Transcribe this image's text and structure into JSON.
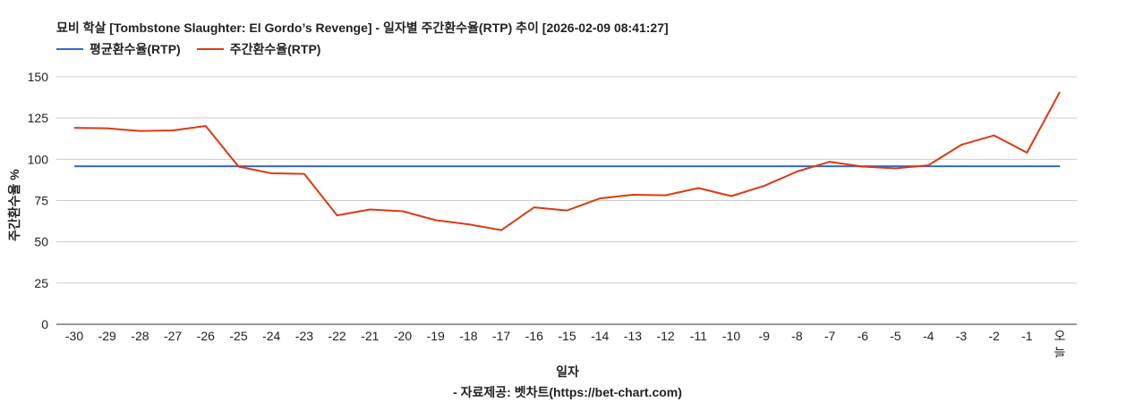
{
  "title": "묘비 학살 [Tombstone Slaughter: El Gordo’s Revenge] - 일자별 주간환수율(RTP) 추이 [2026-02-09 08:41:27]",
  "legend": [
    {
      "label": "평균환수율(RTP)",
      "color": "#3366cc"
    },
    {
      "label": "주간환수율(RTP)",
      "color": "#dc3912"
    }
  ],
  "axes": {
    "ylabel": "주간환수율 %",
    "xlabel": "일자"
  },
  "source": "- 자료제공: 벳차트(https://bet-chart.com)",
  "chart_data": {
    "type": "line",
    "title": "묘비 학살 [Tombstone Slaughter: El Gordo’s Revenge] - 일자별 주간환수율(RTP) 추이 [2026-02-09 08:41:27]",
    "xlabel": "일자",
    "ylabel": "주간환수율 %",
    "ylim": [
      0,
      150
    ],
    "yticks": [
      0,
      25,
      50,
      75,
      100,
      125,
      150
    ],
    "grid": true,
    "legend_position": "top-left",
    "categories": [
      "-30",
      "-29",
      "-28",
      "-27",
      "-26",
      "-25",
      "-24",
      "-23",
      "-22",
      "-21",
      "-20",
      "-19",
      "-18",
      "-17",
      "-16",
      "-15",
      "-14",
      "-13",
      "-12",
      "-11",
      "-10",
      "-9",
      "-8",
      "-7",
      "-6",
      "-5",
      "-4",
      "-3",
      "-2",
      "-1",
      "오늘"
    ],
    "series": [
      {
        "name": "평균환수율(RTP)",
        "color": "#3366cc",
        "values": [
          95.8,
          95.8,
          95.8,
          95.8,
          95.8,
          95.8,
          95.8,
          95.8,
          95.8,
          95.8,
          95.8,
          95.8,
          95.8,
          95.8,
          95.8,
          95.8,
          95.8,
          95.8,
          95.8,
          95.8,
          95.8,
          95.8,
          95.8,
          95.8,
          95.8,
          95.8,
          95.8,
          95.8,
          95.8,
          95.8,
          95.8
        ]
      },
      {
        "name": "주간환수율(RTP)",
        "color": "#dc3912",
        "values": [
          119.1,
          118.8,
          117.2,
          117.5,
          120.2,
          95.6,
          91.5,
          91.2,
          66.0,
          69.6,
          68.5,
          63.1,
          60.6,
          57.1,
          70.9,
          69.0,
          76.3,
          78.5,
          78.2,
          82.6,
          77.7,
          83.9,
          92.6,
          98.5,
          95.6,
          94.5,
          96.4,
          108.8,
          114.5,
          104.0,
          140.8
        ]
      }
    ]
  }
}
